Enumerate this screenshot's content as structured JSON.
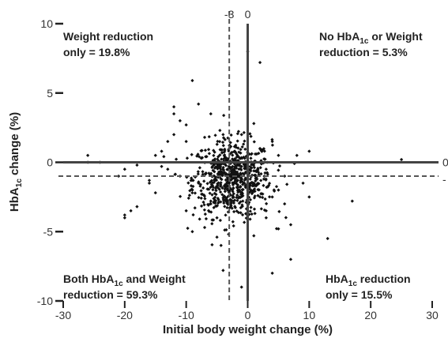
{
  "chart_data": {
    "type": "scatter",
    "title": "",
    "xlabel": "Initial body weight change (%)",
    "ylabel": {
      "pre": "HbA",
      "sub": "1c",
      "post": " change (%)"
    },
    "xlim": [
      -30,
      30
    ],
    "ylim": [
      -10,
      10
    ],
    "x_ticks": [
      -30,
      -20,
      -10,
      0,
      10,
      20,
      30
    ],
    "y_ticks": [
      10,
      5,
      0,
      -5,
      -10
    ],
    "grid": false,
    "reference_lines": {
      "solid": {
        "x": 0,
        "y": 0
      },
      "dashed": {
        "x": -3,
        "y": -1
      },
      "edge_labels": {
        "dashed_x": "-3",
        "solid_x": "0",
        "solid_y": "0",
        "dashed_y": "-"
      }
    },
    "quadrants": {
      "top_left": {
        "lines": [
          [
            {
              "t": "Weight reduction"
            }
          ],
          [
            {
              "t": "only = 19.8%"
            }
          ]
        ]
      },
      "top_right": {
        "lines": [
          [
            {
              "t": "No HbA"
            },
            {
              "t": "1c",
              "sub": true
            },
            {
              "t": " or Weight"
            }
          ],
          [
            {
              "t": "reduction = 5.3%"
            }
          ]
        ]
      },
      "bottom_left": {
        "lines": [
          [
            {
              "t": "Both HbA"
            },
            {
              "t": "1c",
              "sub": true
            },
            {
              "t": " and Weight"
            }
          ],
          [
            {
              "t": "reduction = 59.3%"
            }
          ]
        ]
      },
      "bottom_right": {
        "lines": [
          [
            {
              "t": "HbA"
            },
            {
              "t": "1c",
              "sub": true
            },
            {
              "t": " reduction"
            }
          ],
          [
            {
              "t": "only = 15.5%"
            }
          ]
        ]
      }
    },
    "points": [
      [
        -26,
        0.5
      ],
      [
        -26,
        0
      ],
      [
        -24,
        0
      ],
      [
        -20,
        -3.8
      ],
      [
        -20,
        -4
      ],
      [
        -19,
        -3.5
      ],
      [
        -18,
        -3.2
      ],
      [
        -21,
        -1
      ],
      [
        -20,
        -0.5
      ],
      [
        -18,
        -0.2
      ],
      [
        -16,
        -1.3
      ],
      [
        -16,
        -1.5
      ],
      [
        -15,
        0.5
      ],
      [
        -15,
        -2.2
      ],
      [
        -14,
        0.8
      ],
      [
        -14,
        -0.3
      ],
      [
        -13,
        1.5
      ],
      [
        -13,
        -0.5
      ],
      [
        -12,
        2
      ],
      [
        -12,
        3.5
      ],
      [
        -12,
        4
      ],
      [
        -11,
        3
      ],
      [
        -11,
        -1
      ],
      [
        -10,
        1.5
      ],
      [
        -10,
        2.7
      ],
      [
        -10,
        -3.5
      ],
      [
        -9,
        5.9
      ],
      [
        -9,
        -2
      ],
      [
        -9,
        -5
      ],
      [
        -8,
        4.2
      ],
      [
        -8,
        -1.5
      ],
      [
        -7,
        -4.7
      ],
      [
        -7,
        1.8
      ],
      [
        -6,
        3.5
      ],
      [
        -6,
        -3
      ],
      [
        -6,
        -2.8
      ],
      [
        -5,
        -4
      ],
      [
        -5,
        -5.4
      ],
      [
        -4,
        -7.8
      ],
      [
        -4,
        2
      ],
      [
        -4,
        -0.5
      ],
      [
        -3,
        -1
      ],
      [
        -3,
        -1.5
      ],
      [
        -2,
        -0.8
      ],
      [
        -2,
        -1.2
      ],
      [
        -1,
        2
      ],
      [
        -1,
        -0.3
      ],
      [
        -1,
        -9
      ],
      [
        0,
        8
      ],
      [
        0,
        -2
      ],
      [
        0,
        -3
      ],
      [
        1,
        -1.5
      ],
      [
        1,
        2.8
      ],
      [
        1,
        -5.3
      ],
      [
        2,
        1
      ],
      [
        2,
        -2.5
      ],
      [
        2,
        7.2
      ],
      [
        3,
        -0.5
      ],
      [
        3,
        -4
      ],
      [
        3,
        -3.5
      ],
      [
        4,
        1.5
      ],
      [
        4,
        -2.5
      ],
      [
        4,
        -8
      ],
      [
        5,
        0.5
      ],
      [
        5,
        -2
      ],
      [
        5,
        -4.8
      ],
      [
        6,
        -1
      ],
      [
        6,
        -3
      ],
      [
        7,
        -7
      ],
      [
        7,
        -4.5
      ],
      [
        8,
        0.5
      ],
      [
        9,
        -1.5
      ],
      [
        10,
        0.8
      ],
      [
        10,
        -2.5
      ],
      [
        13,
        -5.5
      ],
      [
        17,
        -2.8
      ],
      [
        25,
        0.2
      ]
    ],
    "cluster": {
      "n": 700,
      "center": [
        -2.5,
        -1.2
      ],
      "spread": [
        3.2,
        1.4
      ]
    }
  }
}
